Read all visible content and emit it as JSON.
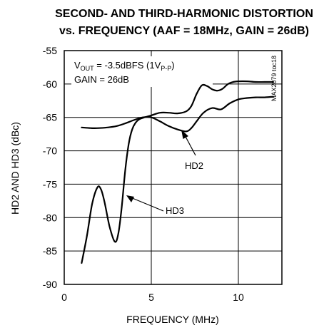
{
  "chart_data": {
    "type": "line",
    "title_line1": "SECOND- AND THIRD-HARMONIC DISTORTION",
    "title_line2": "vs. FREQUENCY (AAF = 18MHz, GAIN = 26dB)",
    "xlabel": "FREQUENCY (MHz)",
    "ylabel": "HD2 AND HD3 (dBc)",
    "xlim": [
      0,
      12.5
    ],
    "ylim": [
      -90,
      -55
    ],
    "xticks": [
      0,
      5,
      10
    ],
    "yticks": [
      -55,
      -60,
      -65,
      -70,
      -75,
      -80,
      -85,
      -90
    ],
    "grid": true,
    "figure_code": "MAX2079 toc18",
    "annotation": {
      "vout_prefix": "V",
      "vout_sub": "OUT",
      "vout_mid": " = -3.5dBFS (1V",
      "vout_sub2": "P-P",
      "vout_suffix": ")",
      "gain": "GAIN = 26dB"
    },
    "series": [
      {
        "name": "HD2",
        "x": [
          1.0,
          1.5,
          2.0,
          2.5,
          3.0,
          3.5,
          4.0,
          4.5,
          5.0,
          5.5,
          6.0,
          6.5,
          7.0,
          7.3,
          7.6,
          8.0,
          8.5,
          9.0,
          9.5,
          10.0,
          10.5,
          11.0,
          11.5,
          12.0
        ],
        "y": [
          -66.5,
          -66.6,
          -66.6,
          -66.5,
          -66.3,
          -65.9,
          -65.4,
          -65.0,
          -65.0,
          -65.6,
          -66.3,
          -66.8,
          -67.1,
          -66.6,
          -65.6,
          -64.3,
          -63.6,
          -63.8,
          -62.9,
          -62.3,
          -62.1,
          -62.0,
          -62.0,
          -61.9
        ],
        "label": "HD2"
      },
      {
        "name": "HD3",
        "x": [
          1.0,
          1.3,
          1.6,
          1.9,
          2.1,
          2.3,
          2.6,
          2.9,
          3.1,
          3.3,
          3.5,
          3.7,
          3.9,
          4.1,
          4.3,
          4.6,
          5.0,
          5.5,
          6.0,
          6.5,
          7.0,
          7.3,
          7.6,
          7.9,
          8.2,
          8.5,
          8.8,
          9.1,
          9.4,
          9.7,
          10.0,
          10.5,
          11.0,
          11.5,
          12.0
        ],
        "y": [
          -86.8,
          -82.8,
          -78.0,
          -75.5,
          -75.7,
          -77.5,
          -81.3,
          -83.6,
          -82.5,
          -78.5,
          -73.0,
          -69.0,
          -66.8,
          -65.8,
          -65.3,
          -65.0,
          -64.7,
          -64.3,
          -64.3,
          -64.4,
          -64.1,
          -63.3,
          -61.5,
          -60.2,
          -60.3,
          -60.8,
          -61.0,
          -60.7,
          -60.0,
          -59.7,
          -59.6,
          -59.6,
          -59.7,
          -59.7,
          -59.7
        ],
        "label": "HD3"
      }
    ]
  }
}
